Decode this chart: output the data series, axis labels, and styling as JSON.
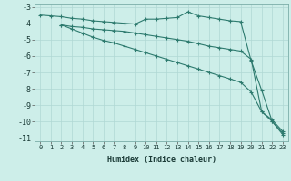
{
  "xlabel": "Humidex (Indice chaleur)",
  "bg_color": "#cdeee9",
  "grid_color": "#b0d8d4",
  "line_color": "#2d7a6e",
  "xlim": [
    -0.5,
    23.5
  ],
  "ylim": [
    -11.2,
    -2.8
  ],
  "yticks": [
    -11,
    -10,
    -9,
    -8,
    -7,
    -6,
    -5,
    -4,
    -3
  ],
  "xticks": [
    0,
    1,
    2,
    3,
    4,
    5,
    6,
    7,
    8,
    9,
    10,
    11,
    12,
    13,
    14,
    15,
    16,
    17,
    18,
    19,
    20,
    21,
    22,
    23
  ],
  "series": [
    {
      "x": [
        0,
        1,
        2,
        3,
        4,
        5,
        6,
        7,
        8,
        9,
        10,
        11,
        12,
        13,
        14,
        15,
        16,
        17,
        18,
        19,
        20,
        21,
        22,
        23
      ],
      "y": [
        -3.5,
        -3.55,
        -3.6,
        -3.7,
        -3.75,
        -3.85,
        -3.9,
        -3.95,
        -4.0,
        -4.05,
        -3.75,
        -3.75,
        -3.7,
        -3.65,
        -3.3,
        -3.55,
        -3.65,
        -3.75,
        -3.85,
        -3.9,
        -6.3,
        -8.1,
        -10.0,
        -10.7
      ]
    },
    {
      "x": [
        2,
        3,
        4,
        5,
        6,
        7,
        8,
        9,
        10,
        11,
        12,
        13,
        14,
        15,
        16,
        17,
        18,
        19,
        20,
        21,
        22,
        23
      ],
      "y": [
        -4.1,
        -4.2,
        -4.25,
        -4.35,
        -4.4,
        -4.45,
        -4.5,
        -4.6,
        -4.7,
        -4.8,
        -4.9,
        -5.0,
        -5.1,
        -5.25,
        -5.4,
        -5.5,
        -5.6,
        -5.7,
        -6.2,
        -9.4,
        -9.9,
        -10.6
      ]
    },
    {
      "x": [
        2,
        3,
        4,
        5,
        6,
        7,
        8,
        9,
        10,
        11,
        12,
        13,
        14,
        15,
        16,
        17,
        18,
        19,
        20,
        21,
        22,
        23
      ],
      "y": [
        -4.1,
        -4.35,
        -4.6,
        -4.85,
        -5.05,
        -5.2,
        -5.4,
        -5.6,
        -5.8,
        -6.0,
        -6.2,
        -6.4,
        -6.6,
        -6.8,
        -7.0,
        -7.2,
        -7.4,
        -7.6,
        -8.2,
        -9.4,
        -10.0,
        -10.8
      ]
    }
  ]
}
